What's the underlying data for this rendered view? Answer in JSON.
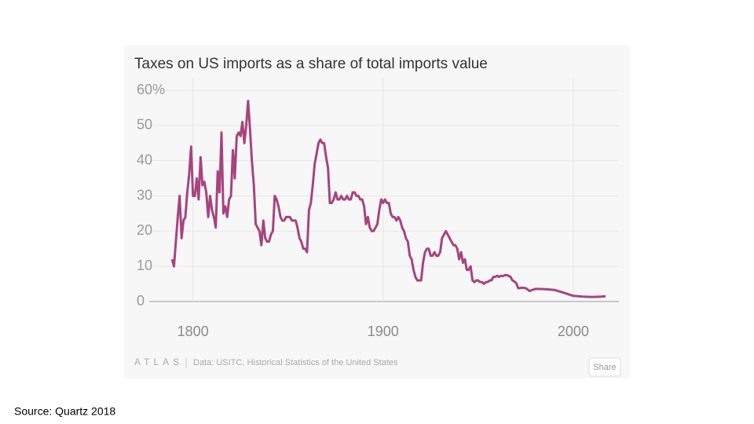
{
  "chart_data": {
    "type": "line",
    "title": "Taxes on US imports as a share of total imports value",
    "brand": "ATLAS",
    "data_note": "Data: USITC, Historical Statistics of the United States",
    "share_button": "Share",
    "source": "Source: Quartz 2018",
    "color": "#a8437f",
    "grid": true,
    "xlim": [
      1777,
      2024
    ],
    "ylim": [
      0,
      60
    ],
    "xticks": [
      1800,
      1900,
      2000
    ],
    "yticks": [
      0,
      10,
      20,
      30,
      40,
      50,
      {
        "value": 60,
        "label": "60%"
      }
    ],
    "x": [
      1789,
      1790,
      1791,
      1792,
      1793,
      1794,
      1795,
      1796,
      1797,
      1798,
      1799,
      1800,
      1801,
      1802,
      1803,
      1804,
      1805,
      1806,
      1807,
      1808,
      1809,
      1810,
      1811,
      1812,
      1813,
      1814,
      1815,
      1816,
      1817,
      1818,
      1819,
      1820,
      1821,
      1822,
      1823,
      1824,
      1825,
      1826,
      1827,
      1828,
      1829,
      1830,
      1831,
      1832,
      1833,
      1834,
      1835,
      1836,
      1837,
      1838,
      1839,
      1840,
      1841,
      1842,
      1843,
      1844,
      1845,
      1846,
      1847,
      1848,
      1849,
      1850,
      1851,
      1852,
      1853,
      1854,
      1855,
      1856,
      1857,
      1858,
      1859,
      1860,
      1861,
      1862,
      1863,
      1864,
      1865,
      1866,
      1867,
      1868,
      1869,
      1870,
      1871,
      1872,
      1873,
      1874,
      1875,
      1876,
      1877,
      1878,
      1879,
      1880,
      1881,
      1882,
      1883,
      1884,
      1885,
      1886,
      1887,
      1888,
      1889,
      1890,
      1891,
      1892,
      1893,
      1894,
      1895,
      1896,
      1897,
      1898,
      1899,
      1900,
      1901,
      1902,
      1903,
      1904,
      1905,
      1906,
      1907,
      1908,
      1909,
      1910,
      1911,
      1912,
      1913,
      1914,
      1915,
      1916,
      1917,
      1918,
      1919,
      1920,
      1921,
      1922,
      1923,
      1924,
      1925,
      1926,
      1927,
      1928,
      1929,
      1930,
      1931,
      1932,
      1933,
      1934,
      1935,
      1936,
      1937,
      1938,
      1939,
      1940,
      1941,
      1942,
      1943,
      1944,
      1945,
      1946,
      1947,
      1948,
      1949,
      1950,
      1951,
      1952,
      1953,
      1954,
      1955,
      1956,
      1957,
      1958,
      1959,
      1960,
      1961,
      1962,
      1963,
      1964,
      1965,
      1966,
      1967,
      1968,
      1969,
      1970,
      1971,
      1973,
      1975,
      1977,
      1980,
      1985,
      1990,
      1995,
      2000,
      2005,
      2010,
      2015,
      2017
    ],
    "values": [
      12,
      10,
      17,
      24,
      30,
      18,
      23,
      24,
      31,
      36,
      44,
      30,
      30,
      35,
      29,
      41,
      33,
      34,
      31,
      24,
      30,
      26,
      24,
      21,
      37,
      31,
      48,
      25,
      27,
      24,
      29,
      30,
      43,
      35,
      47,
      48,
      47,
      51,
      45,
      50,
      57,
      49,
      40,
      33,
      22,
      21,
      20,
      16,
      23,
      18,
      17,
      17,
      19,
      20,
      30,
      29,
      27,
      24,
      23,
      23,
      24,
      24,
      24,
      23,
      23,
      23,
      21,
      18,
      17,
      15,
      15,
      14,
      26,
      28,
      33,
      39,
      42,
      45,
      46,
      45,
      45,
      41,
      38,
      28,
      28,
      29,
      31,
      29,
      29,
      30,
      29,
      29,
      30,
      29,
      29,
      31,
      31,
      30,
      30,
      29,
      29,
      27,
      22,
      24,
      21,
      20,
      20,
      21,
      22,
      26,
      29,
      28,
      29,
      28,
      28,
      25,
      24,
      24,
      23,
      24,
      23,
      21,
      20,
      18,
      17,
      13,
      12,
      9,
      7,
      6,
      6,
      6,
      11,
      14,
      15,
      15,
      13,
      13,
      14,
      13,
      13,
      14,
      18,
      19,
      20,
      19,
      18,
      17,
      16,
      16,
      15,
      12,
      14,
      11,
      12,
      9,
      9,
      10,
      6,
      5.5,
      6,
      6,
      5.5,
      5.5,
      5,
      5.5,
      5.5,
      6,
      6,
      7,
      7,
      7.3,
      7,
      7.3,
      7.2,
      7.5,
      7.5,
      7.3,
      7,
      6,
      5.7,
      5.2,
      3.8,
      3.9,
      3.8,
      3,
      3.6,
      3.5,
      3.3,
      2.5,
      1.6,
      1.4,
      1.3,
      1.4,
      1.5
    ]
  }
}
